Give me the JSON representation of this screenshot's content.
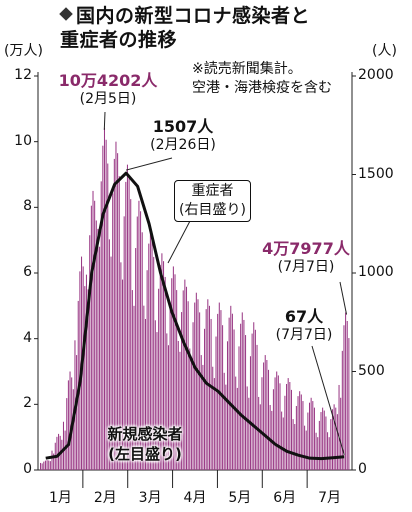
{
  "title": {
    "line1": "国内の新型コロナ感染者と",
    "line2": "重症者の推移",
    "icon": "diamond-bullet-icon"
  },
  "units": {
    "left": "(万人)",
    "right": "(人)"
  },
  "note": {
    "line1": "※読売新聞集計。",
    "line2": "空港・海港検疫を含む"
  },
  "annotations": {
    "peak_new": {
      "value": "10万4202人",
      "date": "(2月5日)"
    },
    "peak_severe": {
      "value": "1507人",
      "date": "(2月26日)"
    },
    "severe_label": {
      "line1": "重症者",
      "line2": "(右目盛り)"
    },
    "latest_new": {
      "value": "4万7977人",
      "date": "(7月7日)"
    },
    "latest_severe": {
      "value": "67人",
      "date": "(7月7日)"
    },
    "new_label": {
      "line1": "新規感染者",
      "line2": "(左目盛り)"
    }
  },
  "colors": {
    "bars": "#9a3a86",
    "line": "#111111",
    "accent_text": "#8a2a6a"
  },
  "chart_data": {
    "type": "bar",
    "title": "国内の新型コロナ感染者と重症者の推移",
    "x_categories": [
      "1月",
      "2月",
      "3月",
      "4月",
      "5月",
      "6月",
      "7月"
    ],
    "left_axis": {
      "unit": "(万人)",
      "range": [
        0,
        12
      ],
      "ticks": [
        "0",
        "2",
        "4",
        "6",
        "8",
        "10",
        "12"
      ]
    },
    "right_axis": {
      "unit": "(人)",
      "range": [
        0,
        2000
      ],
      "ticks": [
        "0",
        "500",
        "1000",
        "1500",
        "2000"
      ]
    },
    "series": [
      {
        "name": "新規感染者",
        "axis": "left",
        "type": "bar",
        "week_points": [
          {
            "week": 0,
            "wk_max": 0.3,
            "wk_min": 0.2
          },
          {
            "week": 1,
            "wk_max": 1.1,
            "wk_min": 0.5
          },
          {
            "week": 2,
            "wk_max": 3.0,
            "wk_min": 1.2
          },
          {
            "week": 3,
            "wk_max": 6.5,
            "wk_min": 3.5
          },
          {
            "week": 4,
            "wk_max": 8.5,
            "wk_min": 5.5
          },
          {
            "week": 5,
            "wk_max": 10.4202,
            "wk_min": 6.8
          },
          {
            "week": 6,
            "wk_max": 10.0,
            "wk_min": 6.5
          },
          {
            "week": 7,
            "wk_max": 9.3,
            "wk_min": 5.8
          },
          {
            "week": 8,
            "wk_max": 8.2,
            "wk_min": 5.0
          },
          {
            "week": 9,
            "wk_max": 7.3,
            "wk_min": 4.6
          },
          {
            "week": 10,
            "wk_max": 6.6,
            "wk_min": 4.2
          },
          {
            "week": 11,
            "wk_max": 6.2,
            "wk_min": 3.8
          },
          {
            "week": 12,
            "wk_max": 5.8,
            "wk_min": 3.6
          },
          {
            "week": 13,
            "wk_max": 5.4,
            "wk_min": 3.4
          },
          {
            "week": 14,
            "wk_max": 5.2,
            "wk_min": 3.2
          },
          {
            "week": 15,
            "wk_max": 5.1,
            "wk_min": 2.8
          },
          {
            "week": 16,
            "wk_max": 5.0,
            "wk_min": 2.6
          },
          {
            "week": 17,
            "wk_max": 4.8,
            "wk_min": 2.5
          },
          {
            "week": 18,
            "wk_max": 4.5,
            "wk_min": 2.2
          },
          {
            "week": 19,
            "wk_max": 3.5,
            "wk_min": 2.0
          },
          {
            "week": 20,
            "wk_max": 3.0,
            "wk_min": 1.8
          },
          {
            "week": 21,
            "wk_max": 2.8,
            "wk_min": 1.6
          },
          {
            "week": 22,
            "wk_max": 2.4,
            "wk_min": 1.4
          },
          {
            "week": 23,
            "wk_max": 2.2,
            "wk_min": 1.2
          },
          {
            "week": 24,
            "wk_max": 1.9,
            "wk_min": 1.0
          },
          {
            "week": 25,
            "wk_max": 2.0,
            "wk_min": 1.0
          },
          {
            "week": 26,
            "wk_max": 4.7977,
            "wk_min": 2.2
          }
        ]
      },
      {
        "name": "重症者",
        "axis": "right",
        "type": "line",
        "points": [
          {
            "week": 0,
            "value": 60
          },
          {
            "week": 1,
            "value": 70
          },
          {
            "week": 2,
            "value": 130
          },
          {
            "week": 3,
            "value": 450
          },
          {
            "week": 4,
            "value": 1000
          },
          {
            "week": 5,
            "value": 1300
          },
          {
            "week": 6,
            "value": 1450
          },
          {
            "week": 7,
            "value": 1507
          },
          {
            "week": 8,
            "value": 1440
          },
          {
            "week": 9,
            "value": 1250
          },
          {
            "week": 10,
            "value": 1000
          },
          {
            "week": 11,
            "value": 800
          },
          {
            "week": 12,
            "value": 650
          },
          {
            "week": 13,
            "value": 520
          },
          {
            "week": 14,
            "value": 440
          },
          {
            "week": 15,
            "value": 400
          },
          {
            "week": 16,
            "value": 340
          },
          {
            "week": 17,
            "value": 280
          },
          {
            "week": 18,
            "value": 230
          },
          {
            "week": 19,
            "value": 180
          },
          {
            "week": 20,
            "value": 130
          },
          {
            "week": 21,
            "value": 95
          },
          {
            "week": 22,
            "value": 75
          },
          {
            "week": 23,
            "value": 60
          },
          {
            "week": 24,
            "value": 58
          },
          {
            "week": 25,
            "value": 62
          },
          {
            "week": 26,
            "value": 67
          }
        ]
      }
    ],
    "grid": false
  }
}
